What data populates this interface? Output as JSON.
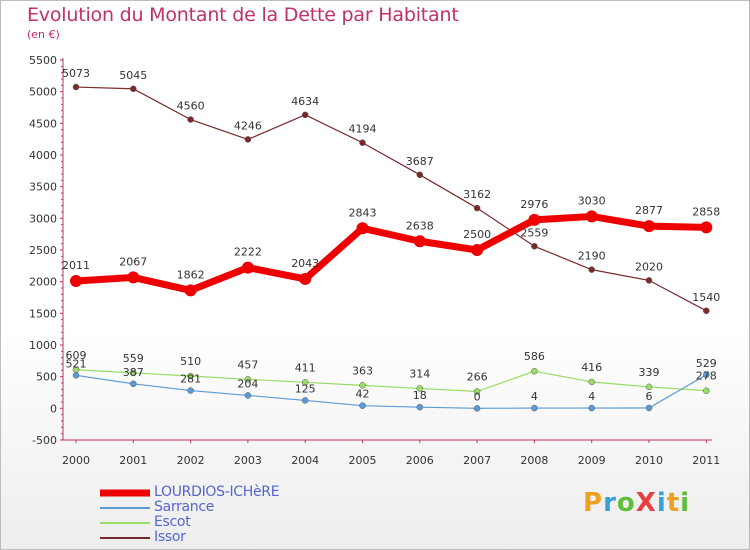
{
  "title": "Evolution du Montant de la Dette par Habitant",
  "subtitle": "(en €)",
  "brand": "ProXiti",
  "colors": {
    "title": "#c0306f",
    "legend_text": "#5566cc",
    "axis": "#c0306f"
  },
  "chart_data": {
    "type": "line",
    "title": "Evolution du Montant de la Dette par Habitant",
    "subtitle": "(en €)",
    "xlabel": "",
    "ylabel": "",
    "ylim": [
      -500,
      5500
    ],
    "yticks": [
      -500,
      0,
      500,
      1000,
      1500,
      2000,
      2500,
      3000,
      3500,
      4000,
      4500,
      5000,
      5500
    ],
    "ytick_labels": [
      "-500",
      "0",
      "500",
      "1000",
      "1500",
      "2000",
      "2500",
      "3000",
      "3500",
      "4000",
      "4500",
      "5000",
      "5500"
    ],
    "categories": [
      "2000",
      "2001",
      "2002",
      "2003",
      "2004",
      "2005",
      "2006",
      "2007",
      "2008",
      "2009",
      "2010",
      "2011"
    ],
    "grid": false,
    "legend_position": "bottom-left",
    "series": [
      {
        "name": "LOURDIOS-ICHèRE",
        "color": "#ee0000",
        "values": [
          2011,
          2067,
          1862,
          2222,
          2043,
          2843,
          2638,
          2500,
          2976,
          3030,
          2877,
          2858
        ]
      },
      {
        "name": "Sarrance",
        "color": "#5b9bd5",
        "values": [
          521,
          387,
          281,
          204,
          125,
          42,
          18,
          0,
          4,
          4,
          6,
          529
        ]
      },
      {
        "name": "Escot",
        "color": "#99dd66",
        "values": [
          609,
          559,
          510,
          457,
          411,
          363,
          314,
          266,
          586,
          416,
          339,
          278
        ]
      },
      {
        "name": "Issor",
        "color": "#7a2a2a",
        "values": [
          5073,
          5045,
          4560,
          4246,
          4634,
          4194,
          3687,
          3162,
          2559,
          2190,
          2020,
          1540
        ]
      }
    ]
  }
}
